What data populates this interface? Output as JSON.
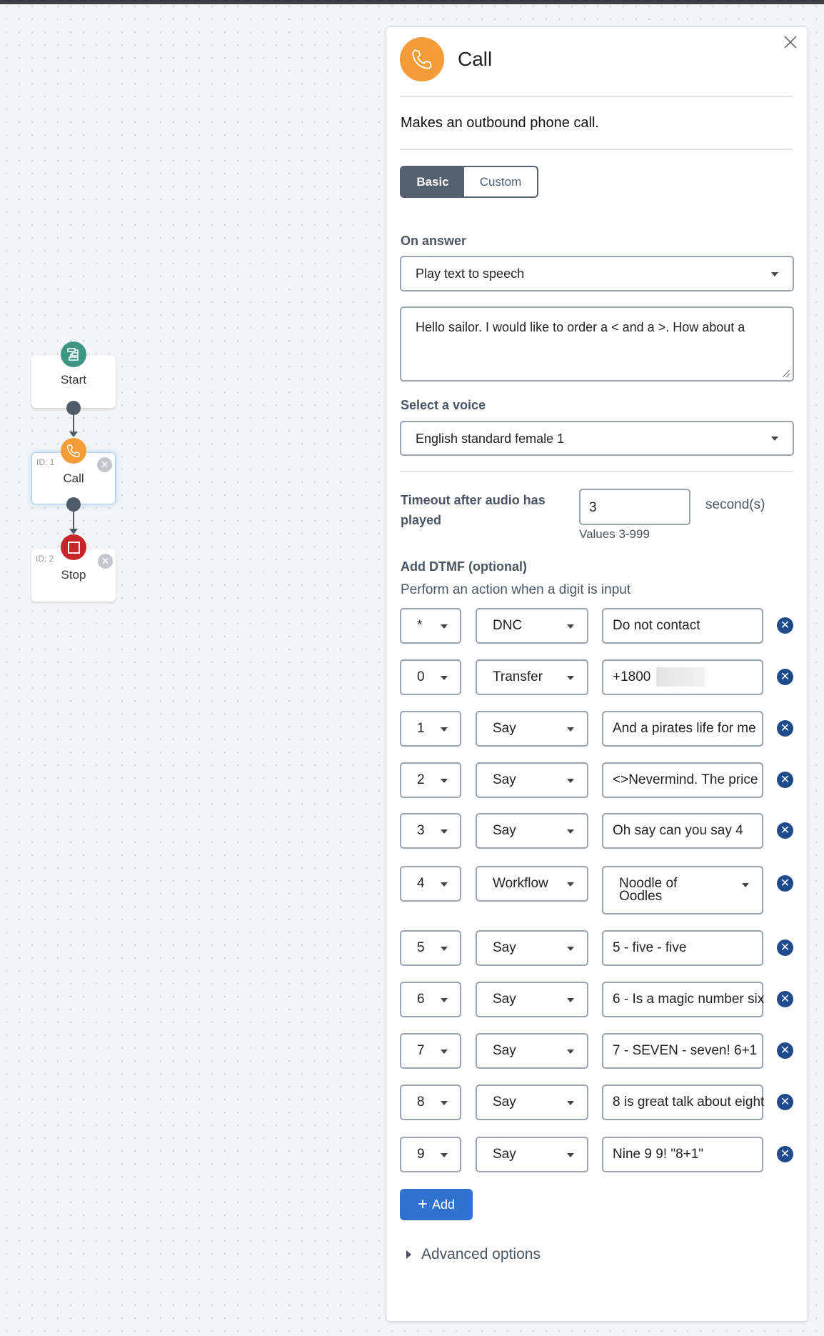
{
  "canvas": {
    "nodes": [
      {
        "label": "Start",
        "icon": "flow-icon",
        "color": "#3d9682"
      },
      {
        "id_label": "ID: 1",
        "label": "Call",
        "icon": "phone-icon",
        "color": "#f39c38"
      },
      {
        "id_label": "ID: 2",
        "label": "Stop",
        "icon": "stop-icon",
        "color": "#c8252a"
      }
    ]
  },
  "panel": {
    "title": "Call",
    "icon": "phone-icon",
    "accent": "#f39c38",
    "description": "Makes an outbound phone call.",
    "tabs": [
      {
        "label": "Basic",
        "active": true
      },
      {
        "label": "Custom",
        "active": false
      }
    ],
    "on_answer_label": "On answer",
    "on_answer_value": "Play text to speech",
    "tts_text": "Hello sailor. I would like to order a < and a >. How about a",
    "voice_label": "Select a voice",
    "voice_value": "English standard female 1",
    "timeout_label": "Timeout after audio has played",
    "timeout_value": "3",
    "timeout_unit": "second(s)",
    "timeout_hint": "Values 3-999",
    "dtmf_label": "Add DTMF (optional)",
    "dtmf_sub": "Perform an action when a digit is input",
    "dtmf_rows": [
      {
        "digit": "*",
        "action": "DNC",
        "value": "Do not contact"
      },
      {
        "digit": "0",
        "action": "Transfer",
        "value": "+1800",
        "redacted": true
      },
      {
        "digit": "1",
        "action": "Say",
        "value": "And a pirates life for me"
      },
      {
        "digit": "2",
        "action": "Say",
        "value": "<>Nevermind. The price"
      },
      {
        "digit": "3",
        "action": "Say",
        "value": "Oh say can you say 4"
      },
      {
        "digit": "4",
        "action": "Workflow",
        "value": "Noodle of Oodles",
        "select": true
      },
      {
        "digit": "5",
        "action": "Say",
        "value": "5 - five - five"
      },
      {
        "digit": "6",
        "action": "Say",
        "value": "6 - Is a magic number six"
      },
      {
        "digit": "7",
        "action": "Say",
        "value": "7 - SEVEN - seven! 6+1"
      },
      {
        "digit": "8",
        "action": "Say",
        "value": "8 is great talk about eight"
      },
      {
        "digit": "9",
        "action": "Say",
        "value": "Nine 9 9! \"8+1\""
      }
    ],
    "add_label": "Add",
    "add_color": "#2f72cf",
    "advanced_label": "Advanced options"
  }
}
